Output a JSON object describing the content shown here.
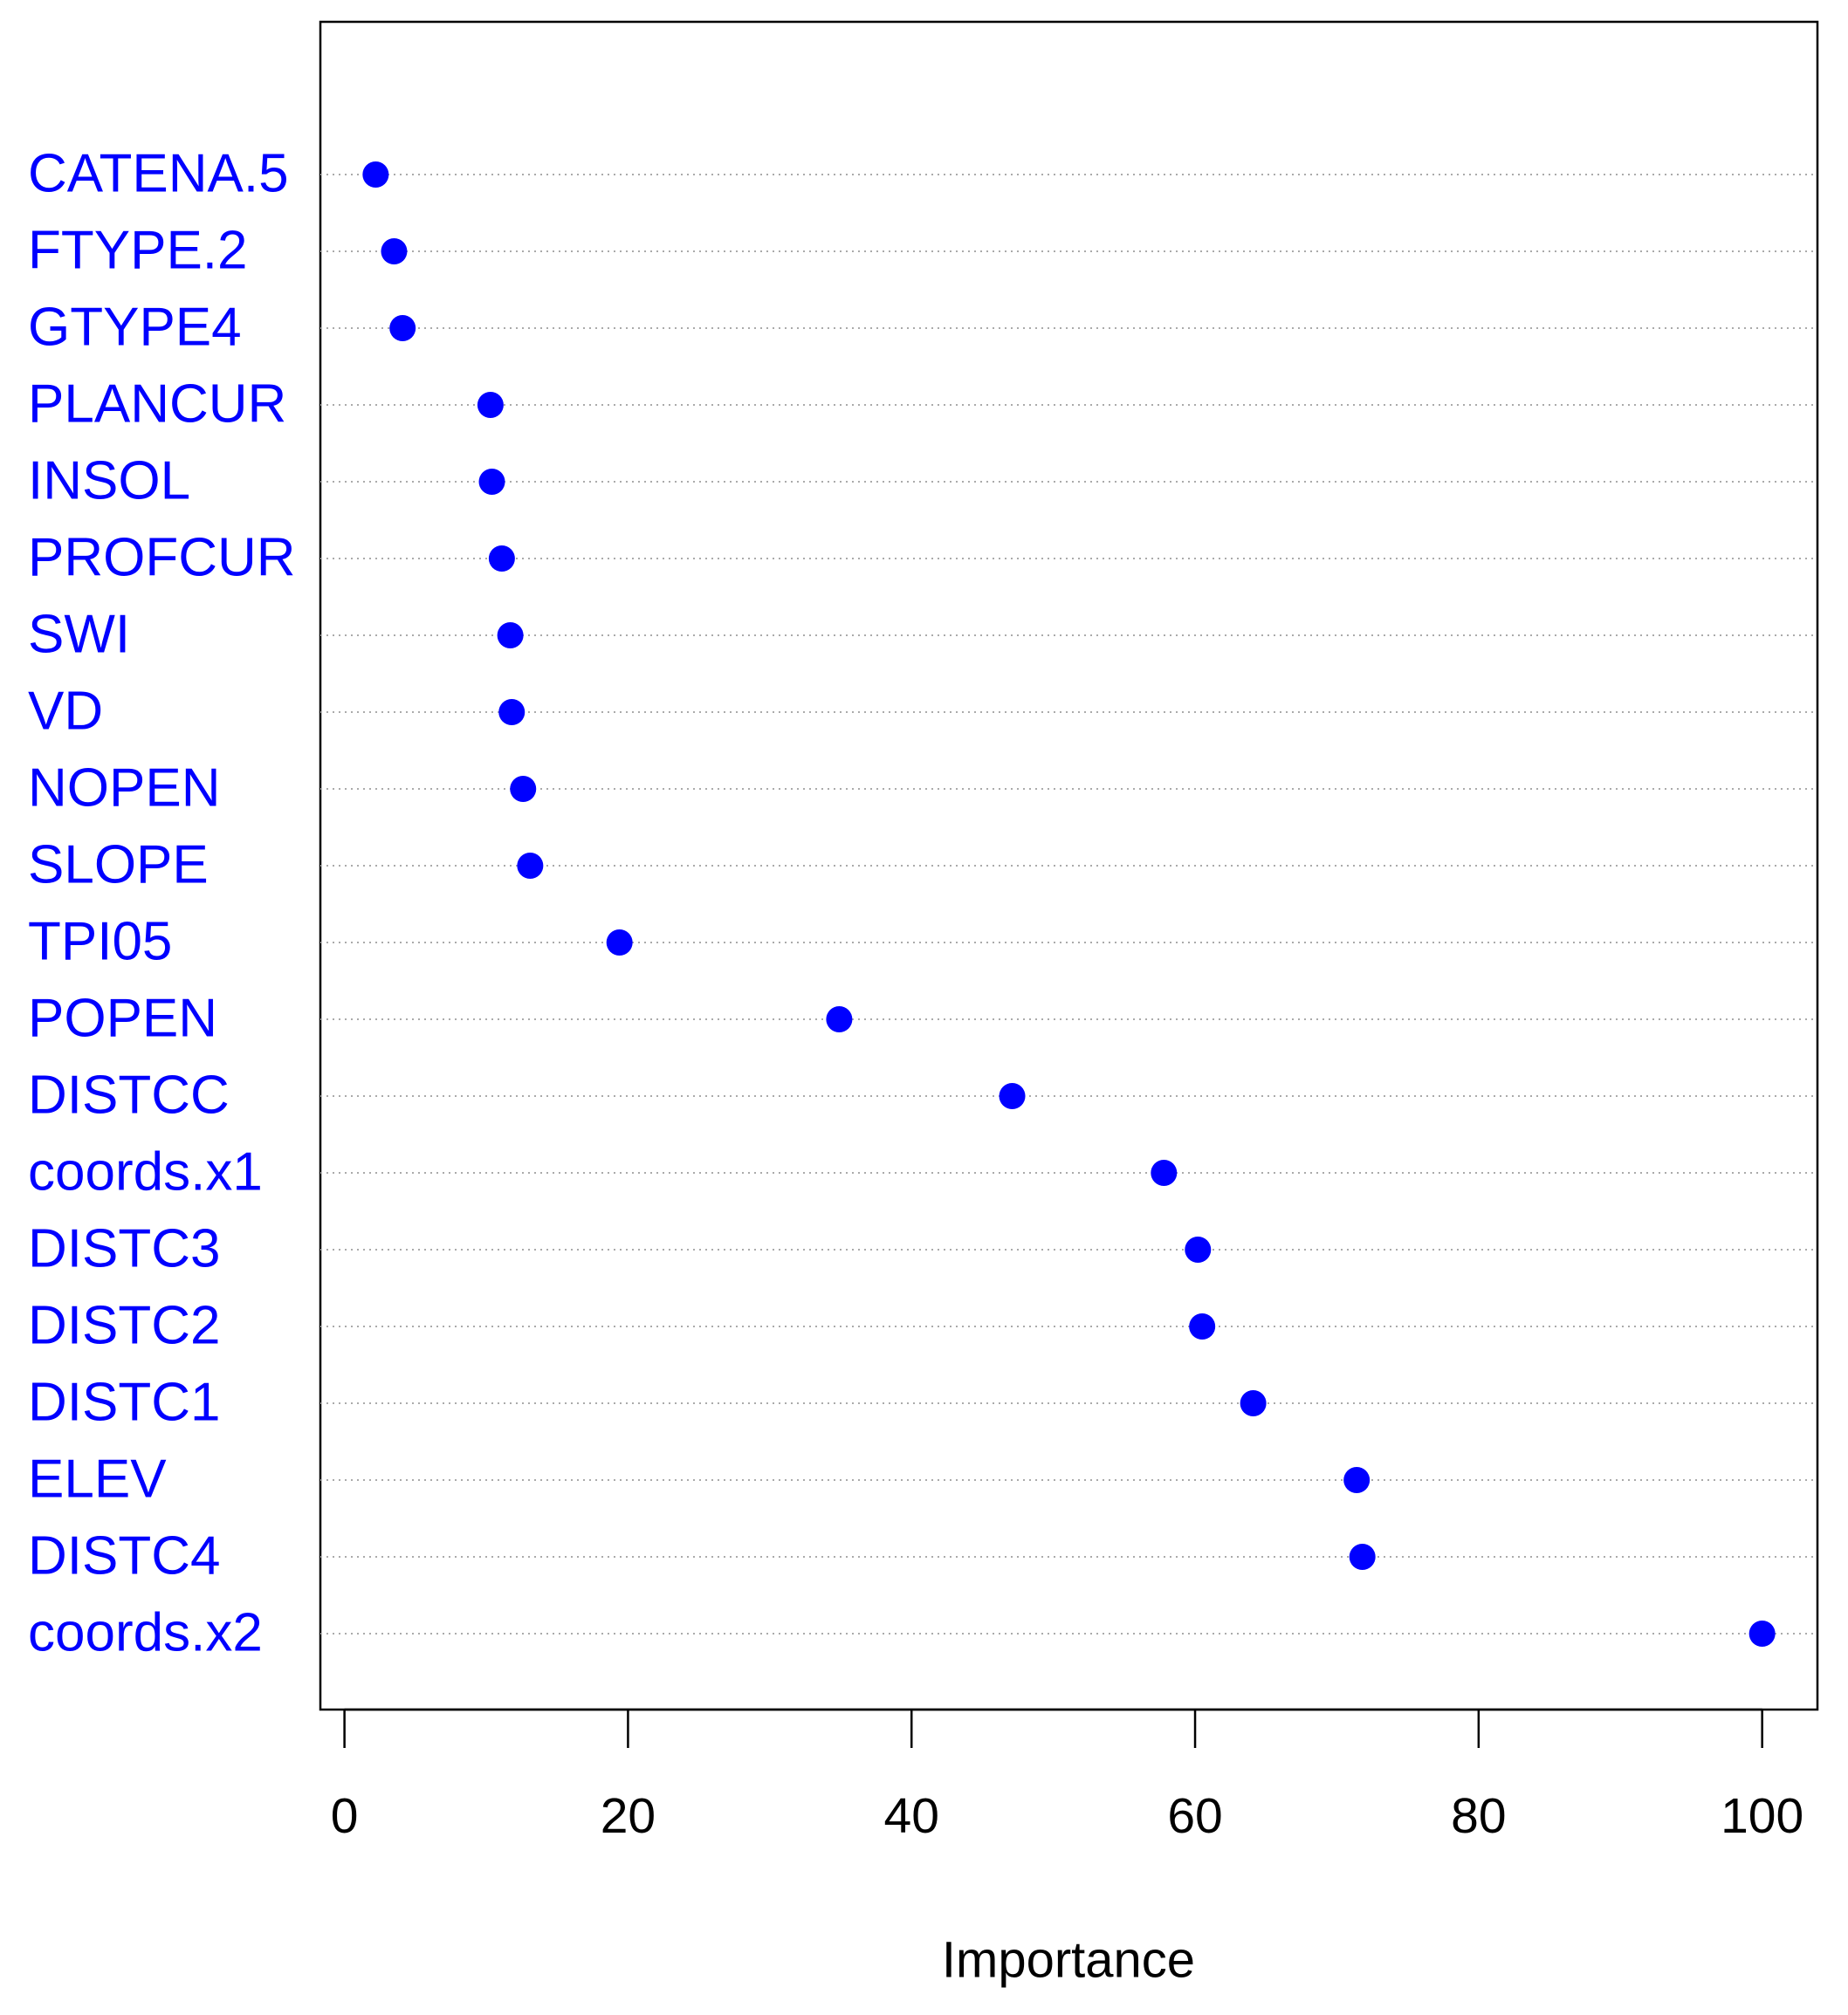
{
  "chart_data": {
    "type": "dot",
    "xlabel": "Importance",
    "categories": [
      "CATENA.5",
      "FTYPE.2",
      "GTYPE4",
      "PLANCUR",
      "INSOL",
      "PROFCUR",
      "SWI",
      "VD",
      "NOPEN",
      "SLOPE",
      "TPI05",
      "POPEN",
      "DISTCC",
      "coords.x1",
      "DISTC3",
      "DISTC2",
      "DISTC1",
      "ELEV",
      "DISTC4",
      "coords.x2"
    ],
    "values": [
      2.2,
      3.5,
      4.1,
      10.3,
      10.4,
      11.1,
      11.7,
      11.8,
      12.6,
      13.1,
      19.4,
      34.9,
      47.1,
      57.8,
      60.2,
      60.5,
      64.1,
      71.4,
      71.8,
      100
    ],
    "color": "#0000ff",
    "label_color": "#0000ff",
    "xlim": [
      -1.7,
      103.9
    ],
    "xticks": [
      0,
      20,
      40,
      60,
      80,
      100
    ],
    "grid": true
  }
}
